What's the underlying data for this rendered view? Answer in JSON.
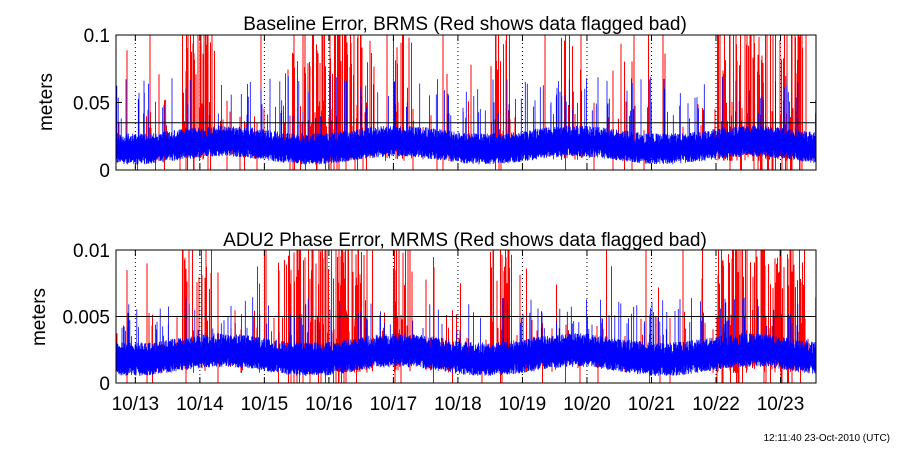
{
  "chart_data": [
    {
      "type": "line",
      "title": "Baseline Error, BRMS (Red shows data flagged bad)",
      "ylabel": "meters",
      "xlabel": "",
      "ylim": [
        0,
        0.1
      ],
      "yticks": [
        "0",
        "0.05",
        "0.1"
      ],
      "xlim_days": [
        12.7,
        23.55
      ],
      "threshold": 0.035,
      "series": [
        {
          "color": "#ff0000",
          "flag": "bad",
          "baseline": 0.022,
          "noise": 0.012,
          "burst_max": 0.1
        },
        {
          "color": "#0000ff",
          "flag": "good",
          "baseline": 0.02,
          "noise": 0.01,
          "burst_max": 0.07
        }
      ],
      "grid": "dotted-vertical-midnight"
    },
    {
      "type": "line",
      "title": "ADU2 Phase Error, MRMS (Red shows data flagged bad)",
      "ylabel": "meters",
      "xlabel": "",
      "ylim": [
        0,
        0.01
      ],
      "yticks": [
        "0",
        "0.005",
        "0.01"
      ],
      "xlim_days": [
        12.7,
        23.55
      ],
      "threshold": 0.005,
      "series": [
        {
          "color": "#ff0000",
          "flag": "bad",
          "baseline": 0.0025,
          "noise": 0.0012,
          "burst_max": 0.01
        },
        {
          "color": "#0000ff",
          "flag": "good",
          "baseline": 0.0023,
          "noise": 0.0011,
          "burst_max": 0.0065
        }
      ],
      "grid": "dotted-vertical-midnight"
    }
  ],
  "xaxis": {
    "tick_labels": [
      "10/13",
      "10/14",
      "10/15",
      "10/16",
      "10/17",
      "10/18",
      "10/19",
      "10/20",
      "10/21",
      "10/22",
      "10/23"
    ],
    "tick_days": [
      13,
      14,
      15,
      16,
      17,
      18,
      19,
      20,
      21,
      22,
      23
    ]
  },
  "timestamp": "12:11:40 23-Oct-2010 (UTC)"
}
